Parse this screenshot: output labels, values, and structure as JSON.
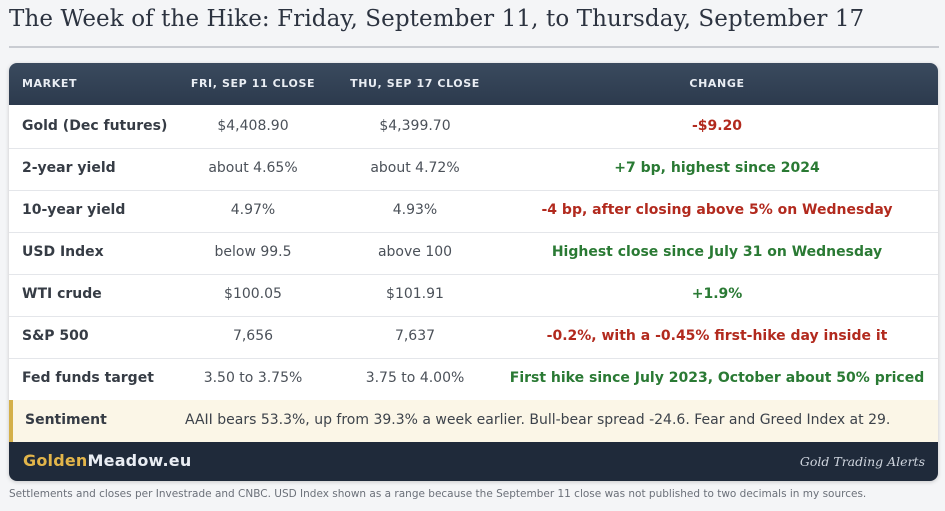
{
  "title": "The Week of the Hike: Friday, September 11, to Thursday, September 17",
  "table": {
    "headers": [
      "MARKET",
      "FRI, SEP 11 CLOSE",
      "THU, SEP 17 CLOSE",
      "CHANGE"
    ],
    "rows": [
      {
        "market": "Gold (Dec futures)",
        "fri": "$4,408.90",
        "thu": "$4,399.70",
        "change": "-$9.20",
        "direction": "negative"
      },
      {
        "market": "2-year yield",
        "fri": "about 4.65%",
        "thu": "about 4.72%",
        "change": "+7 bp, highest since 2024",
        "direction": "positive"
      },
      {
        "market": "10-year yield",
        "fri": "4.97%",
        "thu": "4.93%",
        "change": "-4 bp, after closing above 5% on Wednesday",
        "direction": "negative"
      },
      {
        "market": "USD Index",
        "fri": "below 99.5",
        "thu": "above 100",
        "change": "Highest close since July 31 on Wednesday",
        "direction": "positive"
      },
      {
        "market": "WTI crude",
        "fri": "$100.05",
        "thu": "$101.91",
        "change": "+1.9%",
        "direction": "positive"
      },
      {
        "market": "S&P 500",
        "fri": "7,656",
        "thu": "7,637",
        "change": "-0.2%, with a -0.45% first-hike day inside it",
        "direction": "negative"
      },
      {
        "market": "Fed funds target",
        "fri": "3.50 to 3.75%",
        "thu": "3.75 to 4.00%",
        "change": "First hike since July 2023, October about 50% priced",
        "direction": "positive"
      }
    ],
    "sentiment": {
      "label": "Sentiment",
      "text": "AAII bears 53.3%, up from 39.3% a week earlier. Bull-bear spread -24.6. Fear and Greed Index at 29."
    }
  },
  "footer": {
    "brand_gold": "Golden",
    "brand_rest": "Meadow.eu",
    "tagline": "Gold Trading Alerts"
  },
  "note": "Settlements and closes per Investrade and CNBC. USD Index shown as a range because the September 11 close was not published to two decimals in my sources.",
  "colors": {
    "negative": "#b22a1e",
    "positive": "#2a7a34",
    "header_bg": "#2c3a4d",
    "accent_gold": "#d4b04a"
  }
}
